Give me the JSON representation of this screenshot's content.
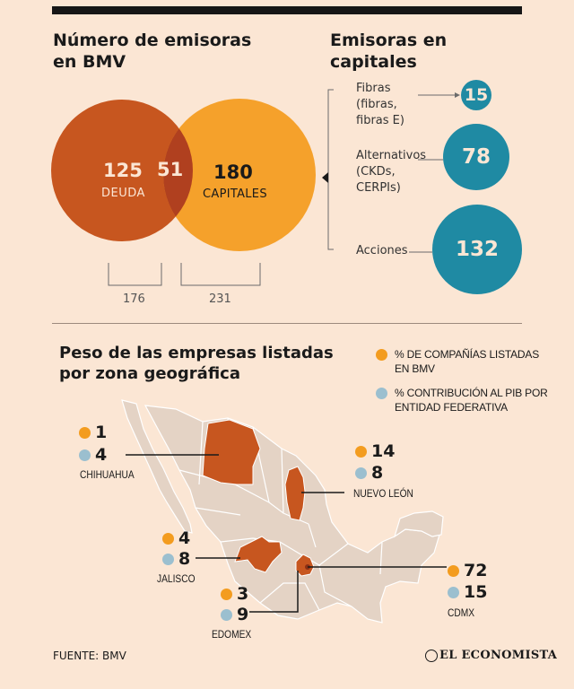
{
  "venn": {
    "title_line1": "Número de emisoras",
    "title_line2": "en BMV",
    "left_value": "125",
    "left_label": "DEUDA",
    "overlap_value": "51",
    "right_value": "180",
    "right_label": "CAPITALES",
    "left_total": "176",
    "right_total": "231",
    "colors": {
      "left": "#c7561f",
      "right": "#f5a12b",
      "overlap": "#b0401f"
    }
  },
  "capitales": {
    "title_line1": "Emisoras en",
    "title_line2": "capitales",
    "items": [
      {
        "label_lines": [
          "Fibras",
          "(fibras,",
          "fibras E)"
        ],
        "value": "15"
      },
      {
        "label_lines": [
          "Alternativos",
          "(CKDs,",
          "CERPIs)"
        ],
        "value": "78"
      },
      {
        "label_lines": [
          "Acciones"
        ],
        "value": "132"
      }
    ],
    "circle_color": "#1f8aa3"
  },
  "geo": {
    "title_line1": "Peso de las empresas listadas",
    "title_line2": "por zona geográfica",
    "legend": [
      {
        "color": "#f39c1f",
        "line1": "% DE COMPAÑÍAS LISTADAS",
        "line2": "EN BMV"
      },
      {
        "color": "#9bbfcf",
        "line1": "% CONTRIBUCIÓN AL PIB POR",
        "line2": "ENTIDAD FEDERATIVA"
      }
    ],
    "states": [
      {
        "name": "CHIHUAHUA",
        "listed": "1",
        "gdp": "4"
      },
      {
        "name": "NUEVO LEÓN",
        "listed": "14",
        "gdp": "8"
      },
      {
        "name": "JALISCO",
        "listed": "4",
        "gdp": "8"
      },
      {
        "name": "EDOMEX",
        "listed": "3",
        "gdp": "9"
      },
      {
        "name": "CDMX",
        "listed": "72",
        "gdp": "15"
      }
    ],
    "map_colors": {
      "land": "#e4d3c5",
      "border": "#ffffff",
      "highlight": "#c7561f"
    }
  },
  "footer": {
    "source": "FUENTE: BMV",
    "brand": "EL ECONOMISTA"
  }
}
